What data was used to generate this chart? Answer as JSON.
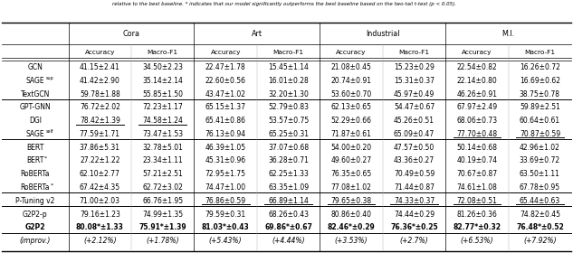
{
  "caption_text": "relative to the best baseline. * indicates that our model significantly outperforms the best baseline based on the two-tail t-test (p < 0.05).",
  "col_groups": [
    "Cora",
    "Art",
    "Industrial",
    "M.I."
  ],
  "col_subheaders": [
    "Accuracy",
    "Macro-F1",
    "Accuracy",
    "Macro-F1",
    "Accuracy",
    "Macro-F1",
    "Accuracy",
    "Macro-F1"
  ],
  "rows": [
    {
      "label": "GCN",
      "sup": "",
      "bold": false,
      "italic": false,
      "vals": [
        "41.15±2.41",
        "34.50±2.23",
        "22.47±1.78",
        "15.45±1.14",
        "21.08±0.45",
        "15.23±0.29",
        "22.54±0.82",
        "16.26±0.72"
      ],
      "underline": []
    },
    {
      "label": "SAGE",
      "sup": "sup",
      "bold": false,
      "italic": false,
      "vals": [
        "41.42±2.90",
        "35.14±2.14",
        "22.60±0.56",
        "16.01±0.28",
        "20.74±0.91",
        "15.31±0.37",
        "22.14±0.80",
        "16.69±0.62"
      ],
      "underline": []
    },
    {
      "label": "TextGCN",
      "sup": "",
      "bold": false,
      "italic": false,
      "vals": [
        "59.78±1.88",
        "55.85±1.50",
        "43.47±1.02",
        "32.20±1.30",
        "53.60±0.70",
        "45.97±0.49",
        "46.26±0.91",
        "38.75±0.78"
      ],
      "underline": []
    },
    {
      "label": "GPT-GNN",
      "sup": "",
      "bold": false,
      "italic": false,
      "vals": [
        "76.72±2.02",
        "72.23±1.17",
        "65.15±1.37",
        "52.79±0.83",
        "62.13±0.65",
        "54.47±0.67",
        "67.97±2.49",
        "59.89±2.51"
      ],
      "underline": []
    },
    {
      "label": "DGI",
      "sup": "",
      "bold": false,
      "italic": false,
      "vals": [
        "78.42±1.39",
        "74.58±1.24",
        "65.41±0.86",
        "53.57±0.75",
        "52.29±0.66",
        "45.26±0.51",
        "68.06±0.73",
        "60.64±0.61"
      ],
      "underline": [
        0,
        1
      ]
    },
    {
      "label": "SAGE",
      "sup": "self",
      "bold": false,
      "italic": false,
      "vals": [
        "77.59±1.71",
        "73.47±1.53",
        "76.13±0.94",
        "65.25±0.31",
        "71.87±0.61",
        "65.09±0.47",
        "77.70±0.48",
        "70.87±0.59"
      ],
      "underline": [
        6,
        7
      ]
    },
    {
      "label": "BERT",
      "sup": "",
      "bold": false,
      "italic": false,
      "vals": [
        "37.86±5.31",
        "32.78±5.01",
        "46.39±1.05",
        "37.07±0.68",
        "54.00±0.20",
        "47.57±0.50",
        "50.14±0.68",
        "42.96±1.02"
      ],
      "underline": []
    },
    {
      "label": "BERT",
      "sup": "¹",
      "bold": false,
      "italic": false,
      "vals": [
        "27.22±1.22",
        "23.34±1.11",
        "45.31±0.96",
        "36.28±0.71",
        "49.60±0.27",
        "43.36±0.27",
        "40.19±0.74",
        "33.69±0.72"
      ],
      "underline": []
    },
    {
      "label": "RoBERTa",
      "sup": "",
      "bold": false,
      "italic": false,
      "vals": [
        "62.10±2.77",
        "57.21±2.51",
        "72.95±1.75",
        "62.25±1.33",
        "76.35±0.65",
        "70.49±0.59",
        "70.67±0.87",
        "63.50±1.11"
      ],
      "underline": []
    },
    {
      "label": "RoBERTa",
      "sup": "¹",
      "bold": false,
      "italic": false,
      "vals": [
        "67.42±4.35",
        "62.72±3.02",
        "74.47±1.00",
        "63.35±1.09",
        "77.08±1.02",
        "71.44±0.87",
        "74.61±1.08",
        "67.78±0.95"
      ],
      "underline": []
    },
    {
      "label": "P-Tuning v2",
      "sup": "",
      "bold": false,
      "italic": false,
      "vals": [
        "71.00±2.03",
        "66.76±1.95",
        "76.86±0.59",
        "66.89±1.14",
        "79.65±0.38",
        "74.33±0.37",
        "72.08±0.51",
        "65.44±0.63"
      ],
      "underline": [
        2,
        3,
        4,
        5,
        6,
        7
      ]
    },
    {
      "label": "G2P2-p",
      "sup": "",
      "bold": false,
      "italic": false,
      "vals": [
        "79.16±1.23",
        "74.99±1.35",
        "79.59±0.31",
        "68.26±0.43",
        "80.86±0.40",
        "74.44±0.29",
        "81.26±0.36",
        "74.82±0.45"
      ],
      "underline": []
    },
    {
      "label": "G2P2",
      "sup": "",
      "bold": true,
      "italic": false,
      "vals": [
        "80.08*±1.33",
        "75.91*±1.39",
        "81.03*±0.43",
        "69.86*±0.67",
        "82.46*±0.29",
        "76.36*±0.25",
        "82.77*±0.32",
        "76.48*±0.52"
      ],
      "underline": []
    },
    {
      "label": "(improv.)",
      "sup": "",
      "bold": false,
      "italic": true,
      "vals": [
        "(+2.12%)",
        "(+1.78%)",
        "(+5.43%)",
        "(+4.44%)",
        "(+3.53%)",
        "(+2.7%)",
        "(+6.53%)",
        "(+7.92%)"
      ],
      "underline": []
    }
  ],
  "group_sep_after_rows": [
    2,
    5,
    9,
    10,
    12
  ],
  "background_color": "#ffffff",
  "text_color": "#000000",
  "font_size": 5.5
}
